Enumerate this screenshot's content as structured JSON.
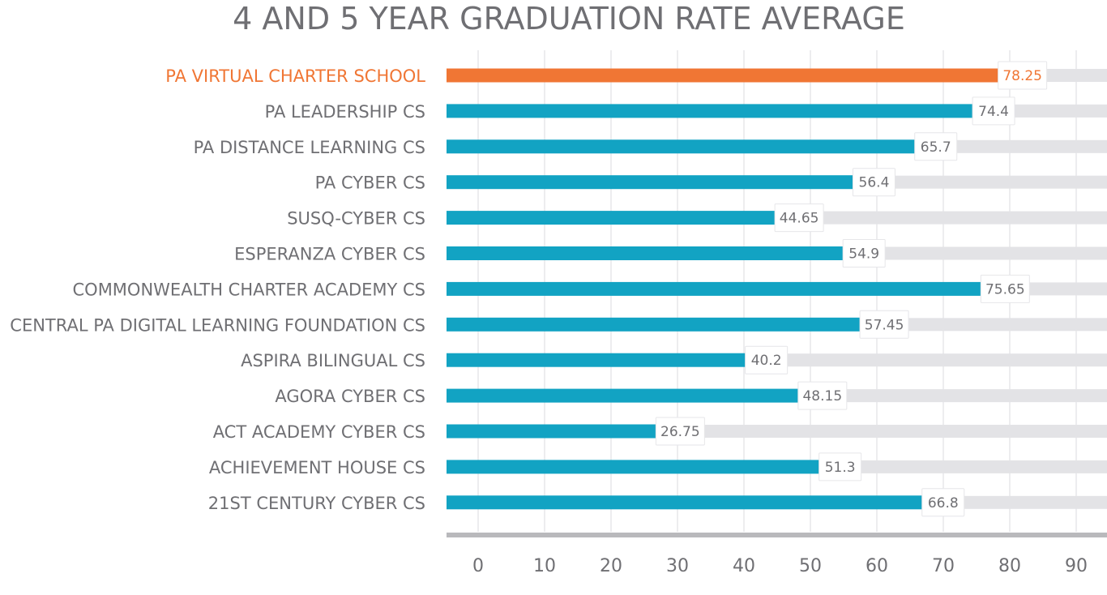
{
  "chart_data": {
    "type": "bar",
    "orientation": "horizontal",
    "title": "4 AND 5 YEAR GRADUATION RATE AVERAGE",
    "xlabel": "",
    "ylabel": "",
    "xlim": [
      0,
      90
    ],
    "xticks": [
      0,
      10,
      20,
      30,
      40,
      50,
      60,
      70,
      80,
      90
    ],
    "grid": true,
    "highlight_category": "PA VIRTUAL CHARTER SCHOOL",
    "categories": [
      "PA VIRTUAL CHARTER SCHOOL",
      "PA LEADERSHIP CS",
      "PA DISTANCE LEARNING CS",
      "PA CYBER CS",
      "SUSQ-CYBER CS",
      "ESPERANZA CYBER CS",
      "COMMONWEALTH CHARTER ACADEMY CS",
      "CENTRAL PA DIGITAL LEARNING FOUNDATION CS",
      "ASPIRA BILINGUAL CS",
      "AGORA CYBER CS",
      "ACT ACADEMY CYBER CS",
      "ACHIEVEMENT HOUSE CS",
      "21ST CENTURY CYBER CS"
    ],
    "values": [
      78.25,
      74.4,
      65.7,
      56.4,
      44.65,
      54.9,
      75.65,
      57.45,
      40.2,
      48.15,
      26.75,
      51.3,
      66.8
    ],
    "value_labels": [
      "78.25",
      "74.4",
      "65.7",
      "56.4",
      "44.65",
      "54.9",
      "75.65",
      "57.45",
      "40.2",
      "48.15",
      "26.75",
      "51.3",
      "66.8"
    ],
    "colors": {
      "highlight_bar": "#f07634",
      "bar": "#12a3c3",
      "track": "#e3e3e6",
      "gridline": "#ededef",
      "axis": "#b9b9bc",
      "text": "#6f6f73",
      "highlight_text": "#f07634"
    }
  }
}
